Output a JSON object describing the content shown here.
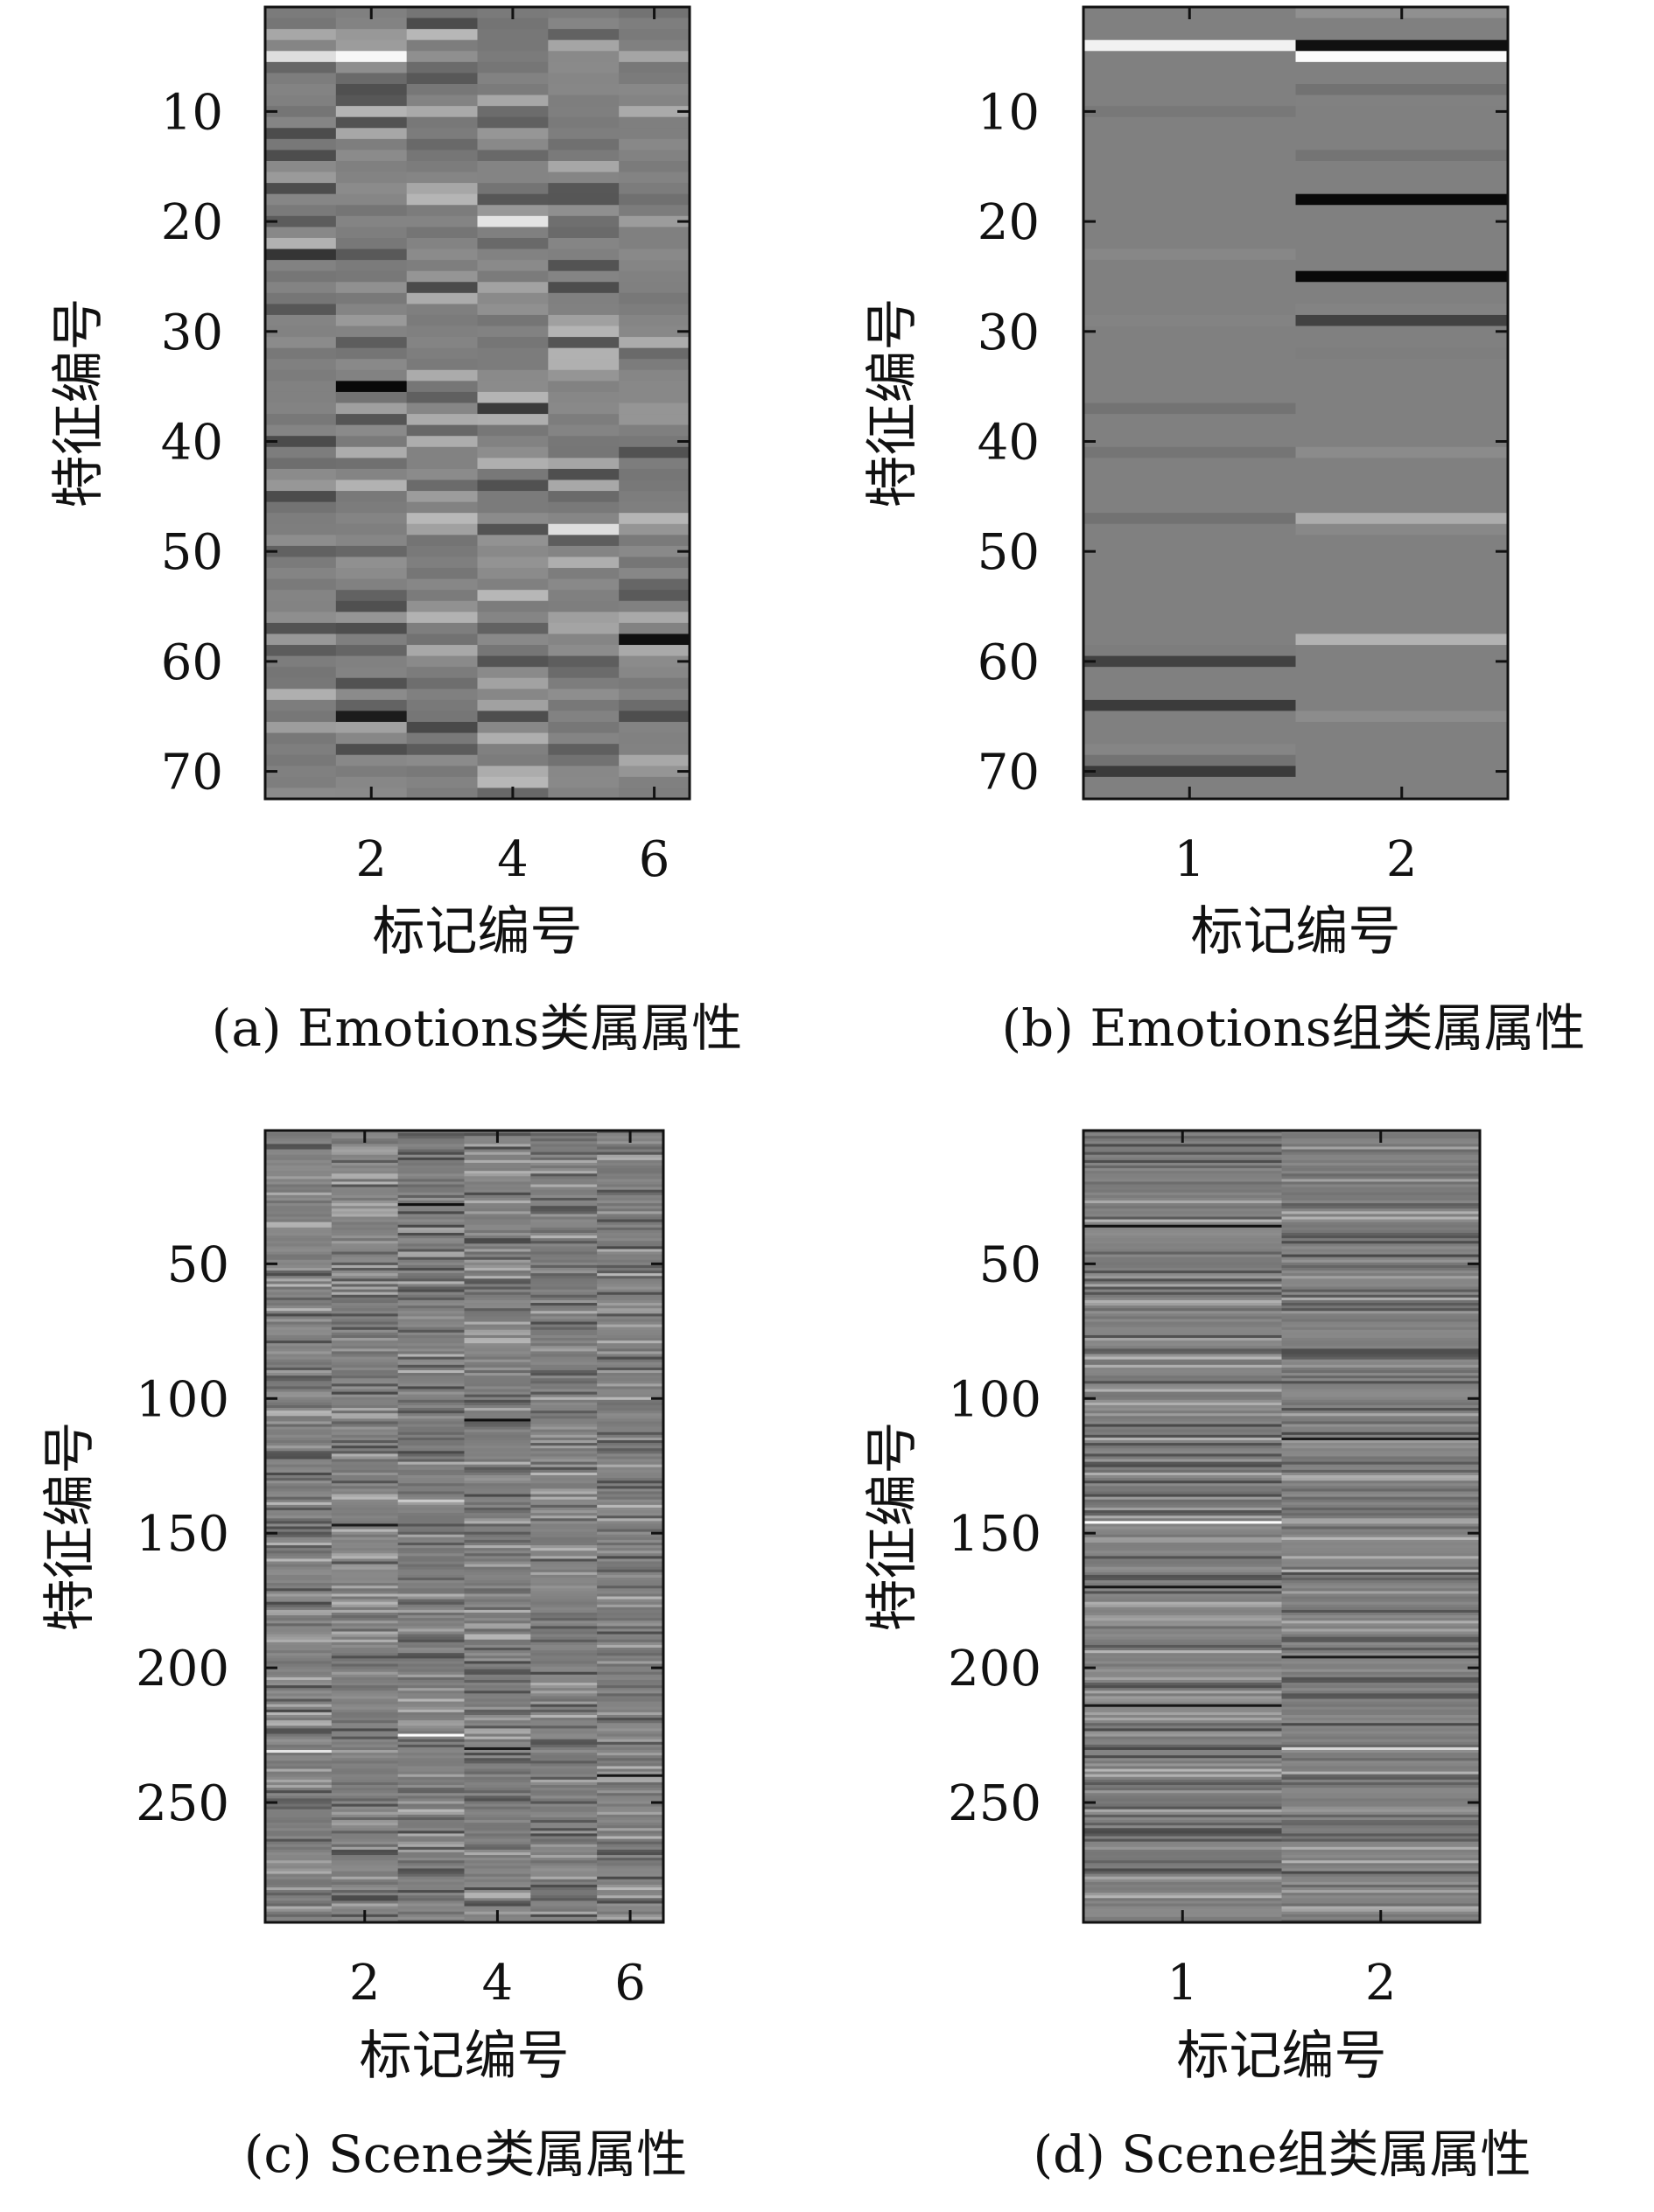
{
  "chart_data": [
    {
      "type": "heatmap",
      "caption": "(a) Emotions类属属性",
      "xlabel": "标记编号",
      "ylabel": "特征编号",
      "x_ticks": [
        2,
        4,
        6
      ],
      "y_ticks": [
        10,
        20,
        30,
        40,
        50,
        60,
        70
      ],
      "ncols": 6,
      "nrows": 72,
      "xlim": [
        0.5,
        6.5
      ],
      "ylim": [
        0.5,
        72.5
      ],
      "colormap": "gray",
      "value_range": [
        -1,
        1
      ],
      "seed": 11,
      "highlights": [
        {
          "col": 1,
          "row": 5,
          "value": 0.75
        },
        {
          "col": 2,
          "row": 5,
          "value": 0.95
        },
        {
          "col": 2,
          "row": 35,
          "value": -0.95
        },
        {
          "col": 2,
          "row": 65,
          "value": -0.8
        },
        {
          "col": 3,
          "row": 47,
          "value": 0.45
        },
        {
          "col": 4,
          "row": 20,
          "value": 0.8
        },
        {
          "col": 5,
          "row": 48,
          "value": 0.75
        },
        {
          "col": 6,
          "row": 58,
          "value": -0.9
        },
        {
          "col": 1,
          "row": 23,
          "value": -0.6
        },
        {
          "col": 4,
          "row": 37,
          "value": -0.55
        }
      ]
    },
    {
      "type": "heatmap",
      "caption": "(b) Emotions组类属属性",
      "xlabel": "标记编号",
      "ylabel": "特征编号",
      "x_ticks": [
        1,
        2
      ],
      "y_ticks": [
        10,
        20,
        30,
        40,
        50,
        60,
        70
      ],
      "ncols": 2,
      "nrows": 72,
      "xlim": [
        0.5,
        2.5
      ],
      "ylim": [
        0.5,
        72.5
      ],
      "colormap": "gray",
      "value_range": [
        -1,
        1
      ],
      "seed": 23,
      "highlights": [
        {
          "col": 1,
          "row": 4,
          "value": 0.9
        },
        {
          "col": 2,
          "row": 4,
          "value": -0.9
        },
        {
          "col": 2,
          "row": 5,
          "value": 0.98
        },
        {
          "col": 2,
          "row": 18,
          "value": -0.95
        },
        {
          "col": 2,
          "row": 25,
          "value": -0.95
        },
        {
          "col": 2,
          "row": 29,
          "value": -0.5
        },
        {
          "col": 2,
          "row": 47,
          "value": 0.35
        },
        {
          "col": 2,
          "row": 58,
          "value": 0.4
        },
        {
          "col": 1,
          "row": 60,
          "value": -0.5
        },
        {
          "col": 1,
          "row": 64,
          "value": -0.55
        },
        {
          "col": 1,
          "row": 70,
          "value": -0.55
        }
      ]
    },
    {
      "type": "heatmap",
      "caption": "(c) Scene类属属性",
      "xlabel": "标记编号",
      "ylabel": "特征编号",
      "x_ticks": [
        2,
        4,
        6
      ],
      "y_ticks": [
        50,
        100,
        150,
        200,
        250
      ],
      "ncols": 6,
      "nrows": 294,
      "xlim": [
        0.5,
        6.5
      ],
      "ylim": [
        0.5,
        294.5
      ],
      "colormap": "gray",
      "value_range": [
        -1,
        1
      ],
      "seed": 37,
      "highlights": [
        {
          "col": 1,
          "row": 231,
          "value": 0.8
        },
        {
          "col": 3,
          "row": 225,
          "value": 1.0
        },
        {
          "col": 3,
          "row": 138,
          "value": 0.6
        },
        {
          "col": 3,
          "row": 28,
          "value": -0.9
        },
        {
          "col": 4,
          "row": 108,
          "value": -0.9
        },
        {
          "col": 4,
          "row": 230,
          "value": -0.8
        },
        {
          "col": 6,
          "row": 240,
          "value": -0.85
        },
        {
          "col": 2,
          "row": 147,
          "value": -0.8
        }
      ]
    },
    {
      "type": "heatmap",
      "caption": "(d) Scene组类属属性",
      "xlabel": "标记编号",
      "ylabel": "特征编号",
      "x_ticks": [
        1,
        2
      ],
      "y_ticks": [
        50,
        100,
        150,
        200,
        250
      ],
      "ncols": 2,
      "nrows": 294,
      "xlim": [
        0.5,
        2.5
      ],
      "ylim": [
        0.5,
        294.5
      ],
      "colormap": "gray",
      "value_range": [
        -1,
        1
      ],
      "seed": 53,
      "highlights": [
        {
          "col": 1,
          "row": 146,
          "value": 1.0
        },
        {
          "col": 1,
          "row": 36,
          "value": -0.9
        },
        {
          "col": 1,
          "row": 170,
          "value": -0.85
        },
        {
          "col": 1,
          "row": 214,
          "value": -0.85
        },
        {
          "col": 2,
          "row": 230,
          "value": 0.7
        },
        {
          "col": 2,
          "row": 196,
          "value": -0.8
        },
        {
          "col": 2,
          "row": 115,
          "value": -0.8
        }
      ]
    }
  ]
}
